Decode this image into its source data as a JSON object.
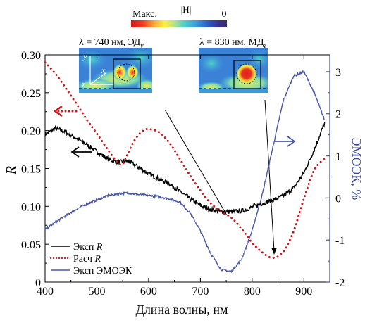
{
  "colorbar": {
    "max_label": "Макс.",
    "field_label": "|H|",
    "min_label": "0",
    "stops": [
      "#d7191c",
      "#f03c1e",
      "#fdae3a",
      "#fff03c",
      "#b7e38a",
      "#4fd2c8",
      "#3a9be0",
      "#2b5cc9",
      "#3a2f8f",
      "#3b2a73"
    ]
  },
  "insets": [
    {
      "label": "λ = 740 нм, ЭД",
      "subscript": "y",
      "axes_labels": [
        "y",
        "x",
        "z"
      ]
    },
    {
      "label": "λ = 830 нм, МД",
      "subscript": "z"
    }
  ],
  "colors": {
    "exp_r": "#000000",
    "calc_r": "#d3121a",
    "emoek": "#4957a6",
    "right_axis": "#3f4a9a"
  },
  "chart_data": {
    "type": "line",
    "xlabel": "Длина волны, нм",
    "ylabel_left": "R",
    "ylabel_right": "ЭМОЭК, %",
    "xlim": [
      400,
      950
    ],
    "ylim_left": [
      0,
      0.3
    ],
    "ylim_right": [
      -2,
      3.4
    ],
    "x_ticks": [
      "400",
      "500",
      "600",
      "700",
      "800",
      "900"
    ],
    "y_left_ticks": [
      "0",
      "0.05",
      "0.10",
      "0.15",
      "0.20",
      "0.25",
      "0.30"
    ],
    "y_right_ticks": [
      "-2",
      "-1",
      "0",
      "1",
      "2",
      "3"
    ],
    "grid": false,
    "legend_position": "bottom-left",
    "series": [
      {
        "name": "Эксп R",
        "axis": "left",
        "style": "solid",
        "x": [
          400,
          420,
          440,
          460,
          480,
          500,
          520,
          540,
          560,
          580,
          600,
          620,
          640,
          660,
          680,
          700,
          720,
          740,
          760,
          780,
          800,
          820,
          840,
          860,
          880,
          900,
          920,
          940
        ],
        "y": [
          0.195,
          0.203,
          0.198,
          0.19,
          0.182,
          0.172,
          0.163,
          0.158,
          0.16,
          0.152,
          0.143,
          0.136,
          0.13,
          0.12,
          0.11,
          0.101,
          0.096,
          0.093,
          0.093,
          0.094,
          0.099,
          0.104,
          0.108,
          0.114,
          0.124,
          0.144,
          0.175,
          0.21
        ]
      },
      {
        "name": "Расч R",
        "axis": "left",
        "style": "dotted",
        "x": [
          400,
          420,
          440,
          460,
          480,
          500,
          520,
          540,
          550,
          560,
          570,
          580,
          590,
          600,
          620,
          640,
          660,
          680,
          700,
          720,
          740,
          760,
          780,
          800,
          820,
          840,
          860,
          880,
          900,
          920,
          940
        ],
        "y": [
          0.29,
          0.275,
          0.256,
          0.236,
          0.215,
          0.196,
          0.176,
          0.158,
          0.156,
          0.17,
          0.184,
          0.194,
          0.2,
          0.202,
          0.198,
          0.184,
          0.163,
          0.141,
          0.121,
          0.104,
          0.093,
          0.085,
          0.07,
          0.052,
          0.039,
          0.032,
          0.04,
          0.067,
          0.11,
          0.148,
          0.163
        ]
      },
      {
        "name": "Эксп ЭМОЭК",
        "axis": "right",
        "style": "solid",
        "x": [
          400,
          420,
          440,
          460,
          480,
          500,
          520,
          540,
          560,
          580,
          600,
          620,
          640,
          660,
          680,
          700,
          720,
          740,
          760,
          780,
          800,
          820,
          840,
          860,
          880,
          900,
          920,
          940
        ],
        "y": [
          -0.75,
          -0.58,
          -0.42,
          -0.27,
          -0.15,
          -0.05,
          0.05,
          0.1,
          0.12,
          0.08,
          0.06,
          0.03,
          -0.02,
          -0.1,
          -0.35,
          -0.78,
          -1.32,
          -1.7,
          -1.75,
          -1.45,
          -0.78,
          0.1,
          1.2,
          2.3,
          2.9,
          3.0,
          2.5,
          1.85
        ]
      }
    ],
    "annotations": [
      {
        "text": "←",
        "color": "#000000",
        "points_to": "left axis"
      },
      {
        "text": "←",
        "color": "#d3121a",
        "points_to": "left axis"
      },
      {
        "text": "→",
        "color": "#4957a6",
        "points_to": "right axis"
      }
    ]
  }
}
